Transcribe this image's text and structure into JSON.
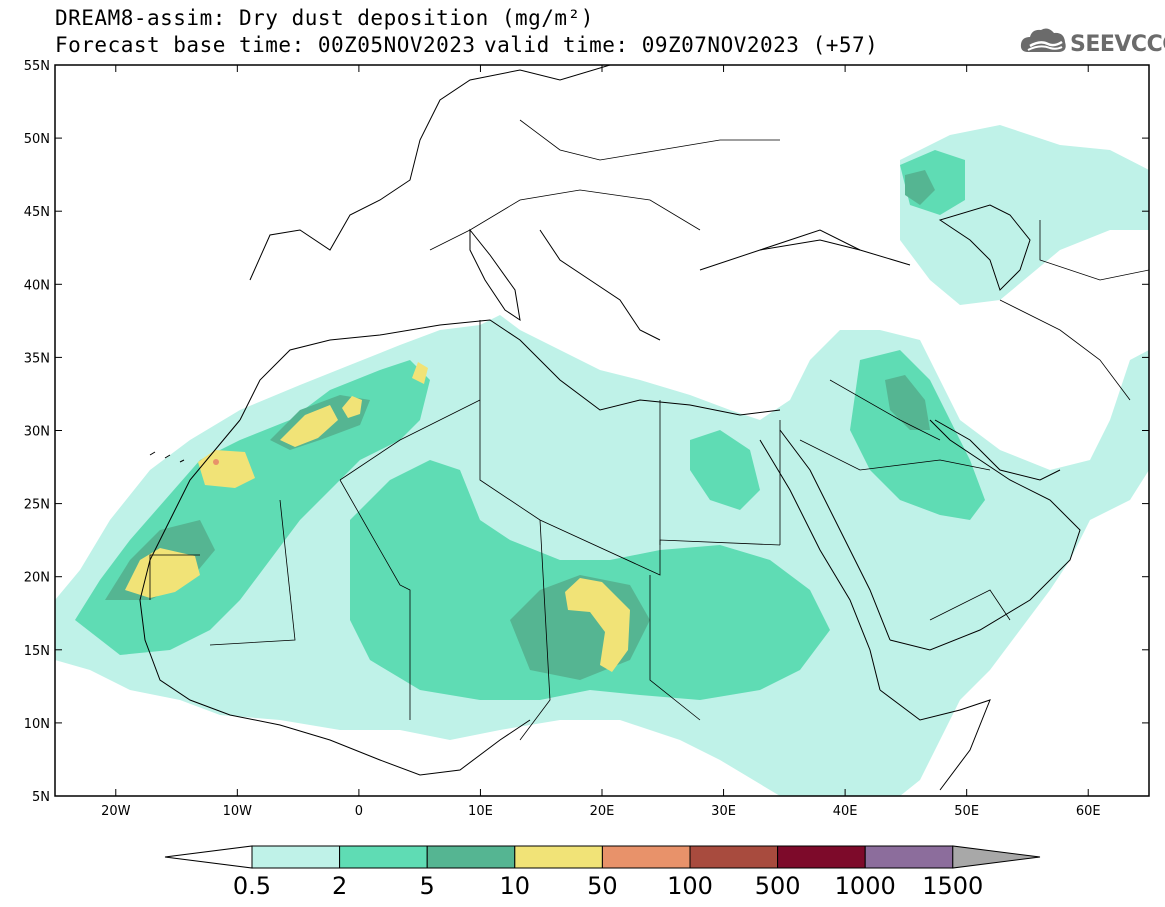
{
  "header": {
    "title": "DREAM8-assim: Dry dust deposition (mg/m²)",
    "base_time": "Forecast base time: 00Z05NOV2023",
    "valid_time": "valid time: 09Z07NOV2023 (+57)"
  },
  "logo": {
    "text": "SEEVCCC",
    "icon": "cloud-icon"
  },
  "axes": {
    "lat_labels": [
      "55N",
      "50N",
      "45N",
      "40N",
      "35N",
      "30N",
      "25N",
      "20N",
      "15N",
      "10N",
      "5N"
    ],
    "lon_labels": [
      "20W",
      "10W",
      "0",
      "10E",
      "20E",
      "30E",
      "40E",
      "50E",
      "60E"
    ]
  },
  "colorbar": {
    "labels": [
      "0.5",
      "2",
      "5",
      "10",
      "50",
      "100",
      "500",
      "1000",
      "1500"
    ],
    "colors": [
      "#bff2e8",
      "#5fdcb4",
      "#55b592",
      "#f1e377",
      "#e8926a",
      "#a84b3e",
      "#7d0a2a",
      "#8c6d9c",
      "#a8a8a8"
    ]
  }
}
